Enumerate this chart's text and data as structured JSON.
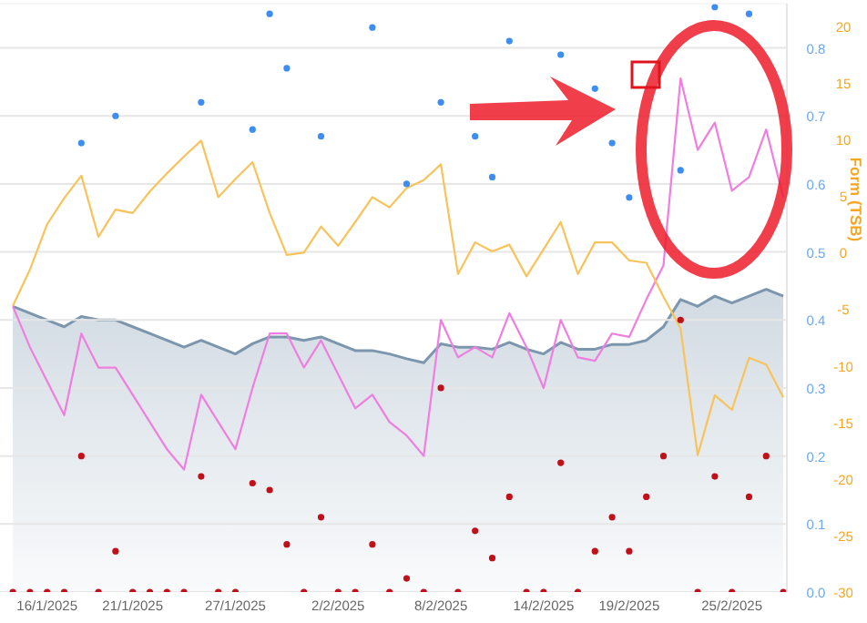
{
  "chart_data": {
    "type": "line",
    "y2label": "Form (TSB)",
    "x": [
      "2025-01-14",
      "2025-01-15",
      "2025-01-16",
      "2025-01-17",
      "2025-01-18",
      "2025-01-19",
      "2025-01-20",
      "2025-01-21",
      "2025-01-22",
      "2025-01-23",
      "2025-01-24",
      "2025-01-25",
      "2025-01-26",
      "2025-01-27",
      "2025-01-28",
      "2025-01-29",
      "2025-01-30",
      "2025-01-31",
      "2025-02-01",
      "2025-02-02",
      "2025-02-03",
      "2025-02-04",
      "2025-02-05",
      "2025-02-06",
      "2025-02-07",
      "2025-02-08",
      "2025-02-09",
      "2025-02-10",
      "2025-02-11",
      "2025-02-12",
      "2025-02-13",
      "2025-02-14",
      "2025-02-15",
      "2025-02-16",
      "2025-02-17",
      "2025-02-18",
      "2025-02-19",
      "2025-02-20",
      "2025-02-21",
      "2025-02-22",
      "2025-02-23",
      "2025-02-24",
      "2025-02-25",
      "2025-02-26",
      "2025-02-27",
      "2025-02-28"
    ],
    "xlim": [
      "2025-01-13T06:00",
      "2025-02-28T05:00"
    ],
    "xticks": [
      {
        "value": "2025-01-16",
        "label": "16/1/2025"
      },
      {
        "value": "2025-01-21",
        "label": "21/1/2025"
      },
      {
        "value": "2025-01-27",
        "label": "27/1/2025"
      },
      {
        "value": "2025-02-02",
        "label": "2/2/2025"
      },
      {
        "value": "2025-02-08",
        "label": "8/2/2025"
      },
      {
        "value": "2025-02-14",
        "label": "14/2/2025"
      },
      {
        "value": "2025-02-19",
        "label": "19/2/2025"
      },
      {
        "value": "2025-02-25",
        "label": "25/2/2025"
      }
    ],
    "ylim": [
      0,
      0.865
    ],
    "yticks": [
      {
        "value": 0,
        "label": "0.0"
      },
      0.1,
      0.2,
      0.3,
      0.4,
      0.5,
      0.6,
      0.7,
      0.8
    ],
    "y2lim": [
      -30,
      22
    ],
    "y2ticks": [
      -30,
      -25,
      -20,
      -15,
      -10,
      -5,
      0,
      5,
      10,
      15,
      20
    ],
    "grid": "y",
    "series": [
      {
        "type": "area",
        "color": "#7b96ad",
        "values": [
          0.42,
          0.41,
          0.4,
          0.39,
          0.405,
          0.4,
          0.4,
          0.39,
          0.38,
          0.37,
          0.36,
          0.37,
          0.36,
          0.35,
          0.365,
          0.375,
          0.375,
          0.37,
          0.375,
          0.365,
          0.355,
          0.355,
          0.35,
          0.343,
          0.337,
          0.365,
          0.36,
          0.36,
          0.357,
          0.367,
          0.357,
          0.35,
          0.367,
          0.357,
          0.357,
          0.364,
          0.364,
          0.37,
          0.39,
          0.43,
          0.42,
          0.435,
          0.425,
          0.435,
          0.445,
          0.435
        ]
      },
      {
        "color": "#f07ee0",
        "values": [
          0.42,
          0.36,
          0.31,
          0.26,
          0.38,
          0.33,
          0.33,
          0.29,
          0.25,
          0.21,
          0.18,
          0.29,
          0.25,
          0.21,
          0.3,
          0.38,
          0.38,
          0.33,
          0.37,
          0.32,
          0.27,
          0.29,
          0.25,
          0.23,
          0.2,
          0.4,
          0.345,
          0.36,
          0.345,
          0.41,
          0.36,
          0.3,
          0.4,
          0.345,
          0.34,
          0.38,
          0.375,
          0.43,
          0.48,
          0.755,
          0.65,
          0.69,
          0.59,
          0.61,
          0.68,
          0.58
        ]
      },
      {
        "axis": "y2",
        "color": "#f9c35c",
        "values": [
          -4.7,
          -1.5,
          2.5,
          4.8,
          6.8,
          1.4,
          3.8,
          3.5,
          5.4,
          7.0,
          8.5,
          9.9,
          4.9,
          6.5,
          8.0,
          3.5,
          -0.2,
          0,
          2.3,
          0.6,
          2.7,
          4.9,
          4.0,
          5.7,
          6.4,
          7.8,
          -1.9,
          0.9,
          0.1,
          0.7,
          -2.1,
          0.3,
          2.7,
          -1.9,
          0.9,
          0.9,
          -0.7,
          -0.9,
          -3.9,
          -6.7,
          -17.9,
          -12.6,
          -13.9,
          -9.3,
          -9.9,
          -12.8
        ]
      },
      {
        "type": "scatter",
        "color": "#3d8ef0",
        "values": [
          null,
          null,
          null,
          null,
          0.66,
          null,
          0.7,
          null,
          null,
          null,
          null,
          0.72,
          null,
          null,
          0.68,
          0.85,
          0.77,
          null,
          0.67,
          null,
          null,
          0.83,
          null,
          0.6,
          null,
          0.72,
          null,
          0.67,
          0.61,
          0.81,
          null,
          null,
          0.79,
          null,
          0.74,
          0.66,
          0.58,
          null,
          null,
          0.62,
          null,
          0.86,
          null,
          0.85,
          null,
          null
        ]
      },
      {
        "type": "scatter",
        "color": "#c0101a",
        "values": [
          0,
          0,
          0,
          0,
          0.2,
          0,
          0.06,
          0,
          0,
          0,
          0,
          0.17,
          0,
          0,
          0.16,
          0.15,
          0.07,
          0,
          0.11,
          0,
          0,
          0.07,
          0,
          0.02,
          0,
          0.3,
          0,
          0.09,
          0.05,
          0.14,
          0,
          0,
          0.19,
          0,
          0.06,
          0.11,
          0.06,
          0.14,
          0.2,
          0.4,
          0,
          0.17,
          0,
          0.14,
          0.2,
          0
        ]
      }
    ]
  }
}
